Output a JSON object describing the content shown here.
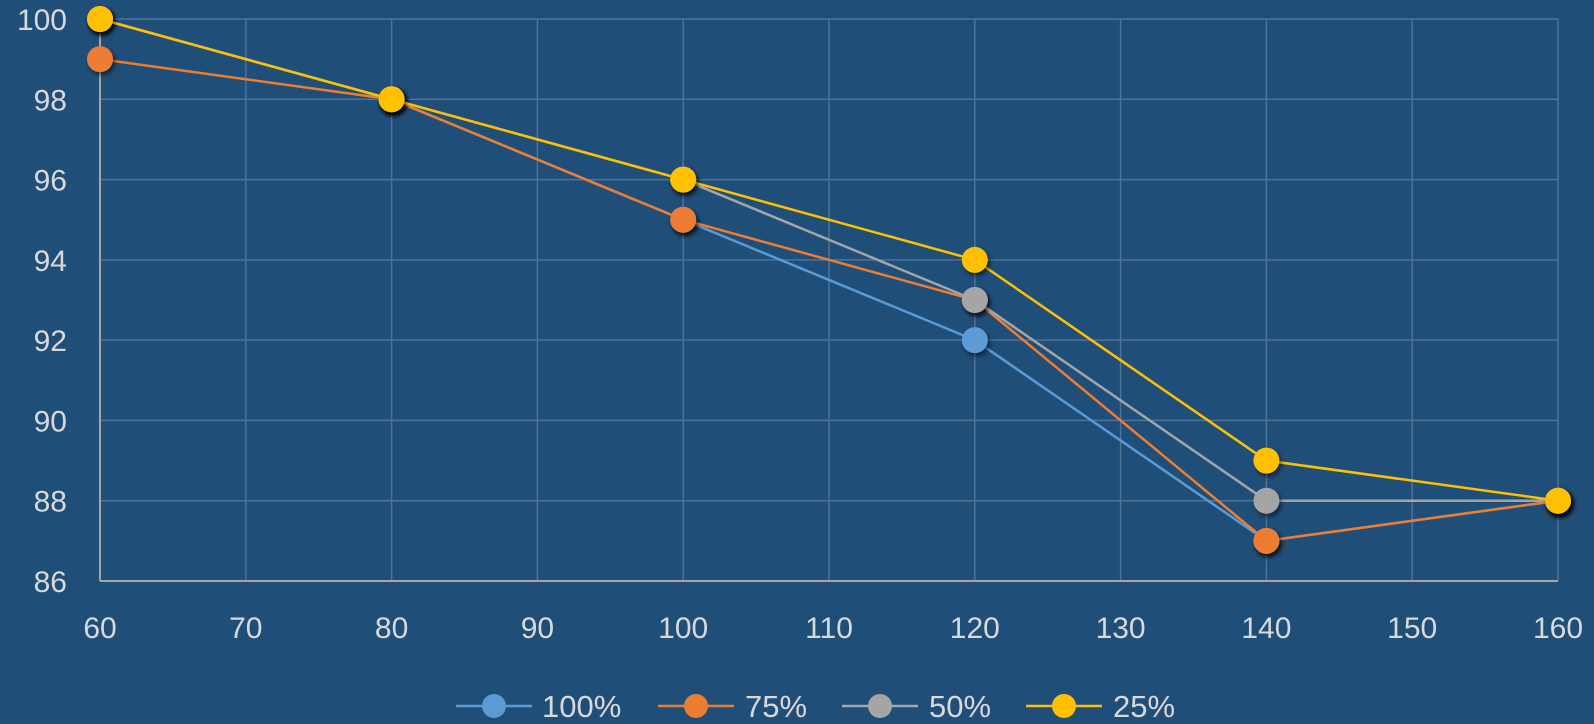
{
  "chart_data": {
    "type": "line",
    "title": "",
    "xlabel": "",
    "ylabel": "",
    "x": [
      60,
      80,
      100,
      120,
      140,
      160
    ],
    "xlim": [
      60,
      160
    ],
    "ylim": [
      86,
      100
    ],
    "x_ticks": [
      60,
      70,
      80,
      90,
      100,
      110,
      120,
      130,
      140,
      150,
      160
    ],
    "y_ticks": [
      86,
      88,
      90,
      92,
      94,
      96,
      98,
      100
    ],
    "x_tick_labels": [
      "60",
      "70",
      "80",
      "90",
      "100",
      "110",
      "120",
      "130",
      "140",
      "150",
      "160"
    ],
    "y_tick_labels": [
      "86",
      "88",
      "90",
      "92",
      "94",
      "96",
      "98",
      "100"
    ],
    "grid": true,
    "legend_position": "bottom",
    "background_color": "#1f4e79",
    "series": [
      {
        "name": "100%",
        "color": "#5b9bd5",
        "values": [
          100,
          98,
          95,
          92,
          87,
          88
        ]
      },
      {
        "name": "75%",
        "color": "#ed7d31",
        "values": [
          99,
          98,
          95,
          93,
          87,
          88
        ]
      },
      {
        "name": "50%",
        "color": "#a5a5a5",
        "values": [
          100,
          98,
          96,
          93,
          88,
          88
        ]
      },
      {
        "name": "25%",
        "color": "#ffc000",
        "values": [
          100,
          98,
          96,
          94,
          89,
          88
        ]
      }
    ]
  }
}
